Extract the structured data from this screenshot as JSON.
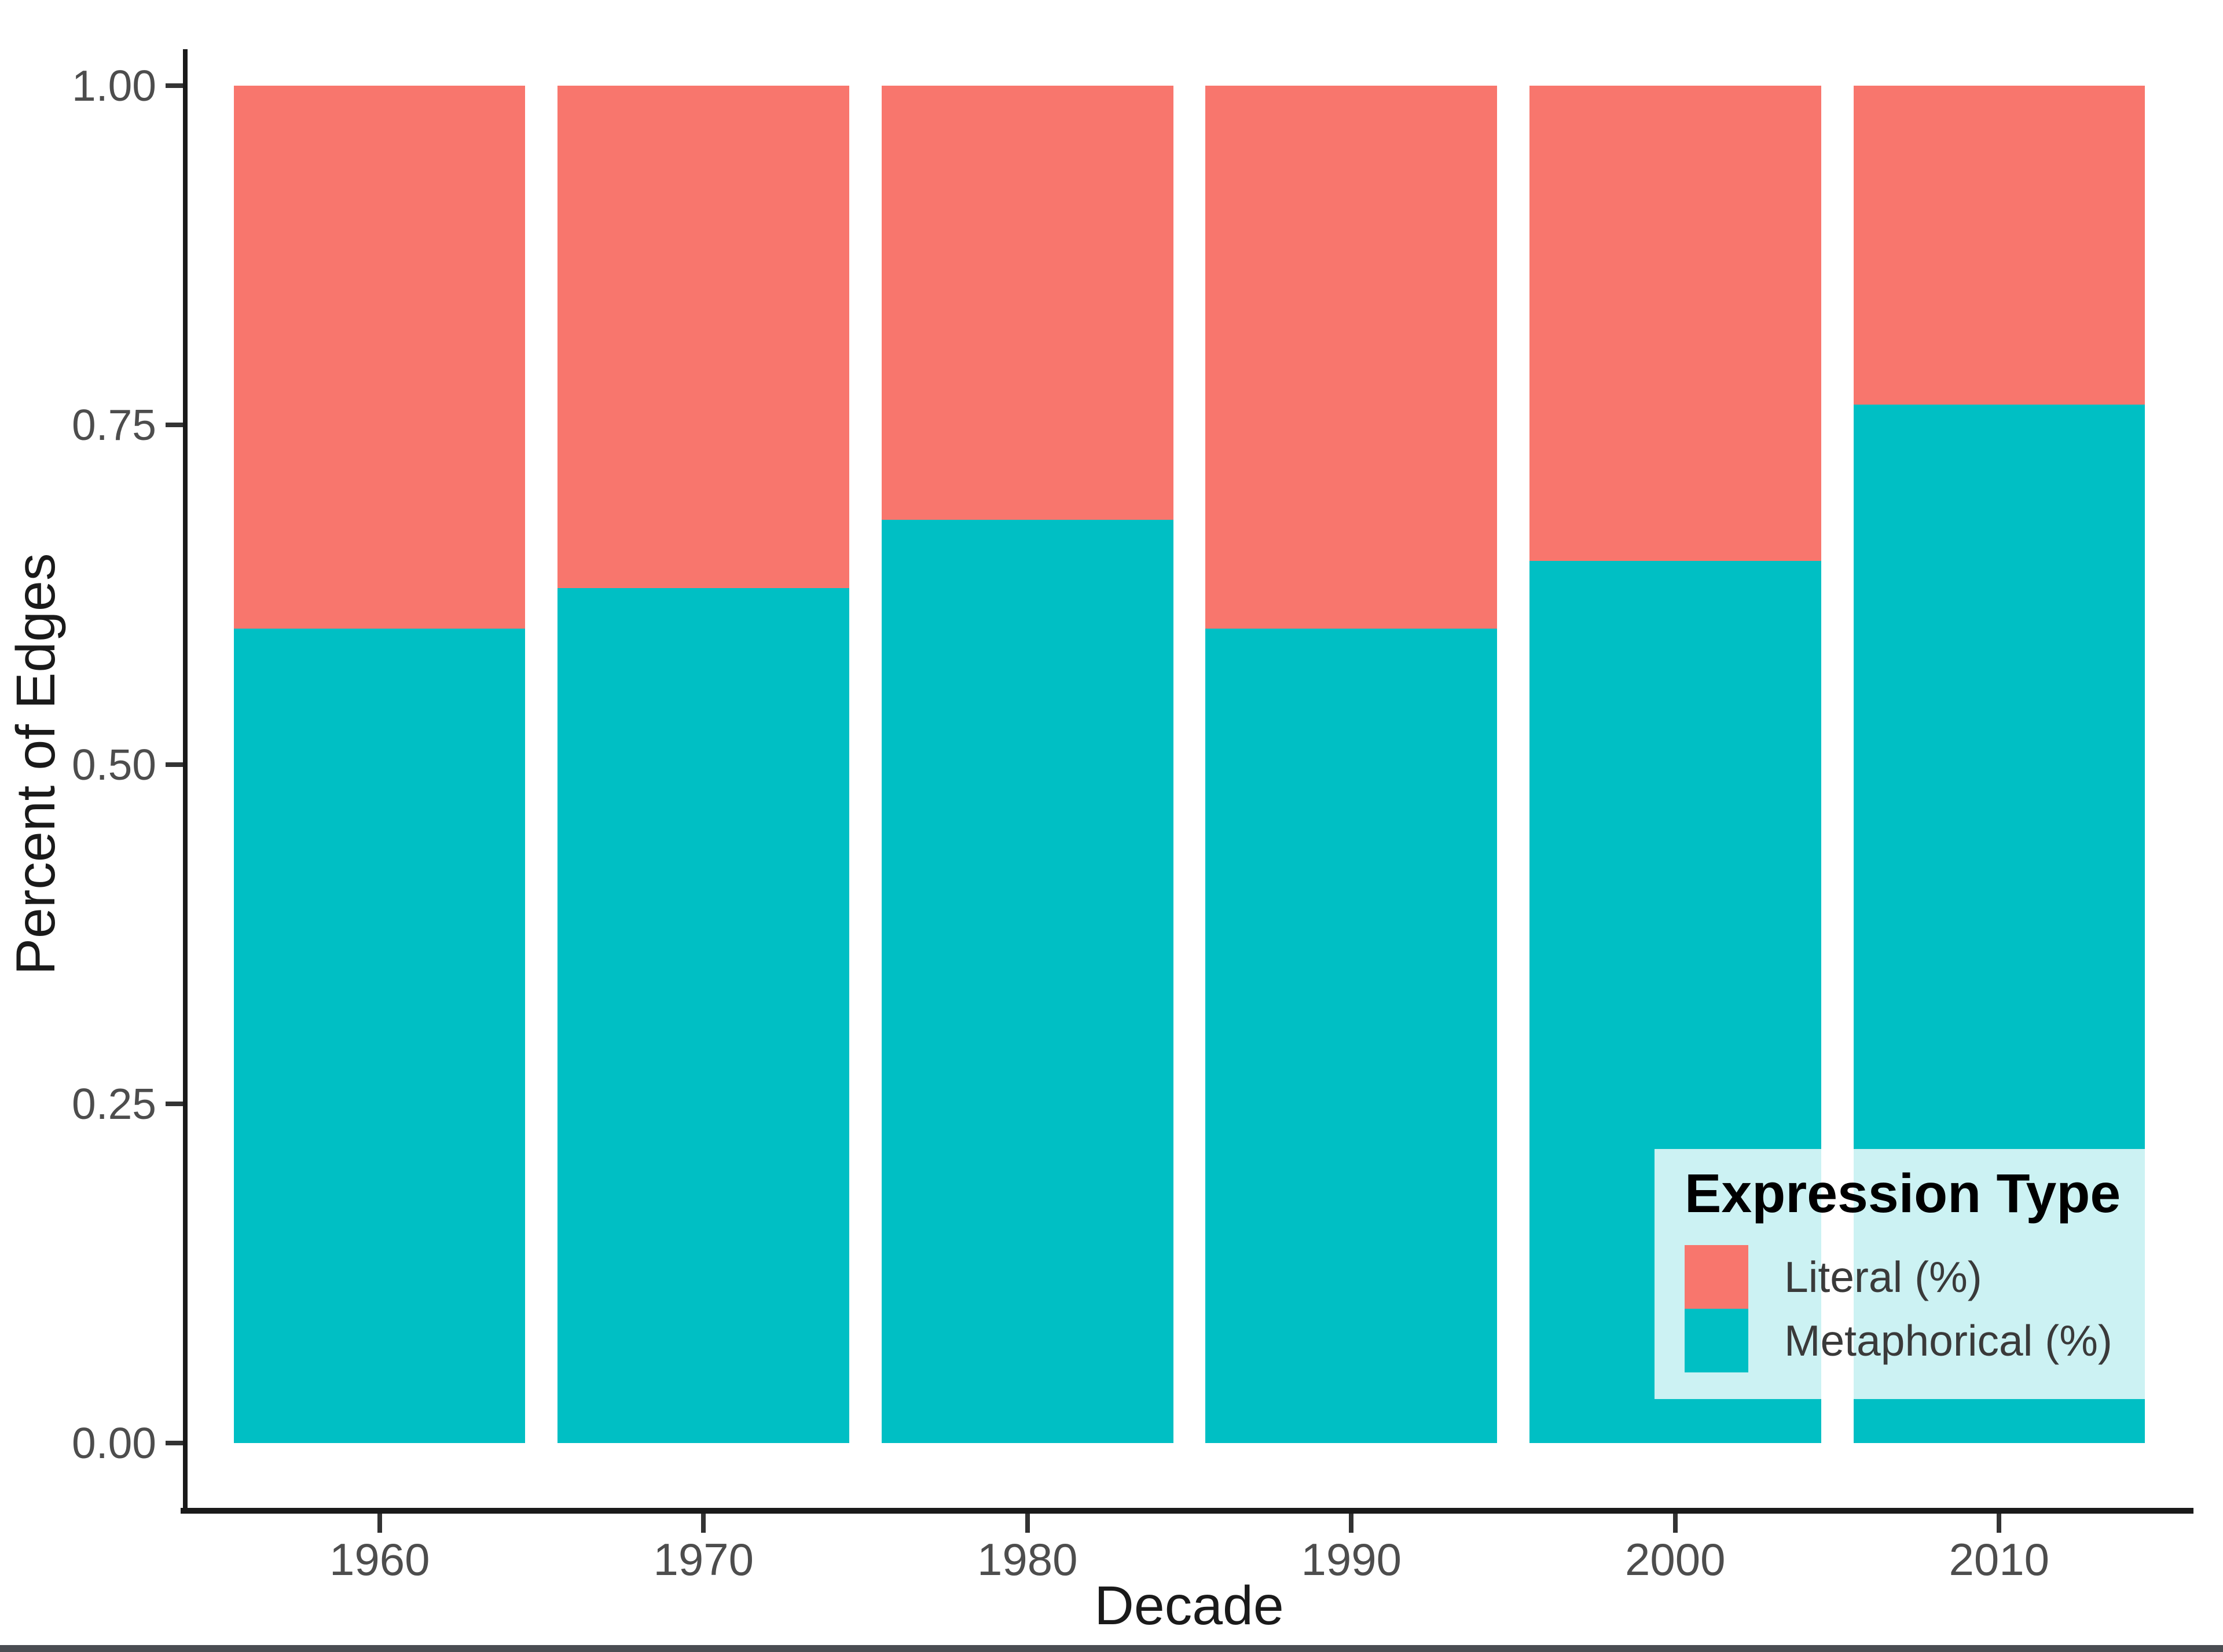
{
  "figure": {
    "y_axis": {
      "title": "Percent of Edges",
      "tick_labels": [
        "0.00",
        "0.25",
        "0.50",
        "0.75",
        "1.00"
      ],
      "tick_values": [
        0,
        0.25,
        0.5,
        0.75,
        1
      ]
    },
    "x_axis": {
      "title": "Decade",
      "tick_labels": [
        "1960",
        "1970",
        "1980",
        "1990",
        "2000",
        "2010"
      ]
    },
    "legend": {
      "title": "Expression Type",
      "items": [
        {
          "label": "Literal (%)",
          "color": "#F8766D"
        },
        {
          "label": "Metaphorical (%)",
          "color": "#00BFC4"
        }
      ],
      "background": "rgba(255,255,255,0.80)"
    },
    "colors": {
      "literal": "#F8766D",
      "metaphorical": "#00BFC4",
      "axis_line": "#1a1a1a",
      "tick_text": "#4d4d4d",
      "bottom_strip": "#4a4d52"
    }
  },
  "chart_data": {
    "type": "bar",
    "stacked": true,
    "stack_normalized": true,
    "title": "",
    "xlabel": "Decade",
    "ylabel": "Percent of Edges",
    "categories": [
      "1960",
      "1970",
      "1980",
      "1990",
      "2000",
      "2010"
    ],
    "series": [
      {
        "name": "Literal (%)",
        "color": "#F8766D",
        "values": [
          0.4,
          0.37,
          0.32,
          0.4,
          0.35,
          0.235
        ]
      },
      {
        "name": "Metaphorical (%)",
        "color": "#00BFC4",
        "values": [
          0.6,
          0.63,
          0.68,
          0.6,
          0.65,
          0.765
        ]
      }
    ],
    "ylim": [
      0,
      1
    ],
    "yticks": [
      0,
      0.25,
      0.5,
      0.75,
      1
    ],
    "grid": false,
    "legend_position": "inside bottom-right",
    "bar_width_fraction": 0.9,
    "slots_units": 6.2
  }
}
